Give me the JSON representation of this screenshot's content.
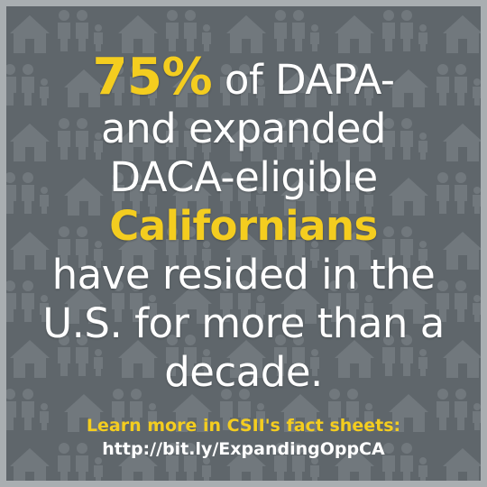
{
  "headline": {
    "stat": "75%",
    "line1_rest": " of DAPA-",
    "line2": "and expanded",
    "line3": "DACA-eligible",
    "highlight": "Californians",
    "line5": "have resided in the",
    "line6": "U.S. for more than a",
    "line7": "decade."
  },
  "cta": {
    "line1": "Learn more in CSII's fact sheets:",
    "link": "http://bit.ly/ExpandingOppCA"
  },
  "colors": {
    "background": "#5f666b",
    "frame": "#a9aeb1",
    "pattern": "#737a7f",
    "accent": "#f4cd1f",
    "text": "#ffffff"
  },
  "icons": [
    "house-icon",
    "family-icon",
    "person-icon"
  ]
}
